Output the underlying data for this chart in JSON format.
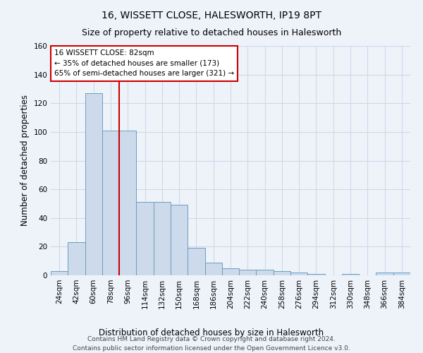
{
  "title": "16, WISSETT CLOSE, HALESWORTH, IP19 8PT",
  "subtitle": "Size of property relative to detached houses in Halesworth",
  "xlabel": "Distribution of detached houses by size in Halesworth",
  "ylabel": "Number of detached properties",
  "bar_color": "#ccdaeb",
  "bar_edge_color": "#6a9ec0",
  "background_color": "#eef3fa",
  "categories": [
    "24sqm",
    "42sqm",
    "60sqm",
    "78sqm",
    "96sqm",
    "114sqm",
    "132sqm",
    "150sqm",
    "168sqm",
    "186sqm",
    "204sqm",
    "222sqm",
    "240sqm",
    "258sqm",
    "276sqm",
    "294sqm",
    "312sqm",
    "330sqm",
    "348sqm",
    "366sqm",
    "384sqm"
  ],
  "values": [
    3,
    23,
    127,
    101,
    101,
    51,
    51,
    49,
    19,
    9,
    5,
    4,
    4,
    3,
    2,
    1,
    0,
    1,
    0,
    2,
    2
  ],
  "ylim": [
    0,
    160
  ],
  "yticks": [
    0,
    20,
    40,
    60,
    80,
    100,
    120,
    140,
    160
  ],
  "vline_x": 3.5,
  "vline_color": "#cc0000",
  "annotation_text": "16 WISSETT CLOSE: 82sqm\n← 35% of detached houses are smaller (173)\n65% of semi-detached houses are larger (321) →",
  "annotation_box_color": "#ffffff",
  "annotation_box_edge": "#cc0000",
  "footer_text": "Contains HM Land Registry data © Crown copyright and database right 2024.\nContains public sector information licensed under the Open Government Licence v3.0.",
  "grid_color": "#d0d8e8",
  "title_fontsize": 10,
  "subtitle_fontsize": 9,
  "label_fontsize": 8.5,
  "tick_fontsize": 7.5,
  "annotation_fontsize": 7.5,
  "footer_fontsize": 6.5
}
